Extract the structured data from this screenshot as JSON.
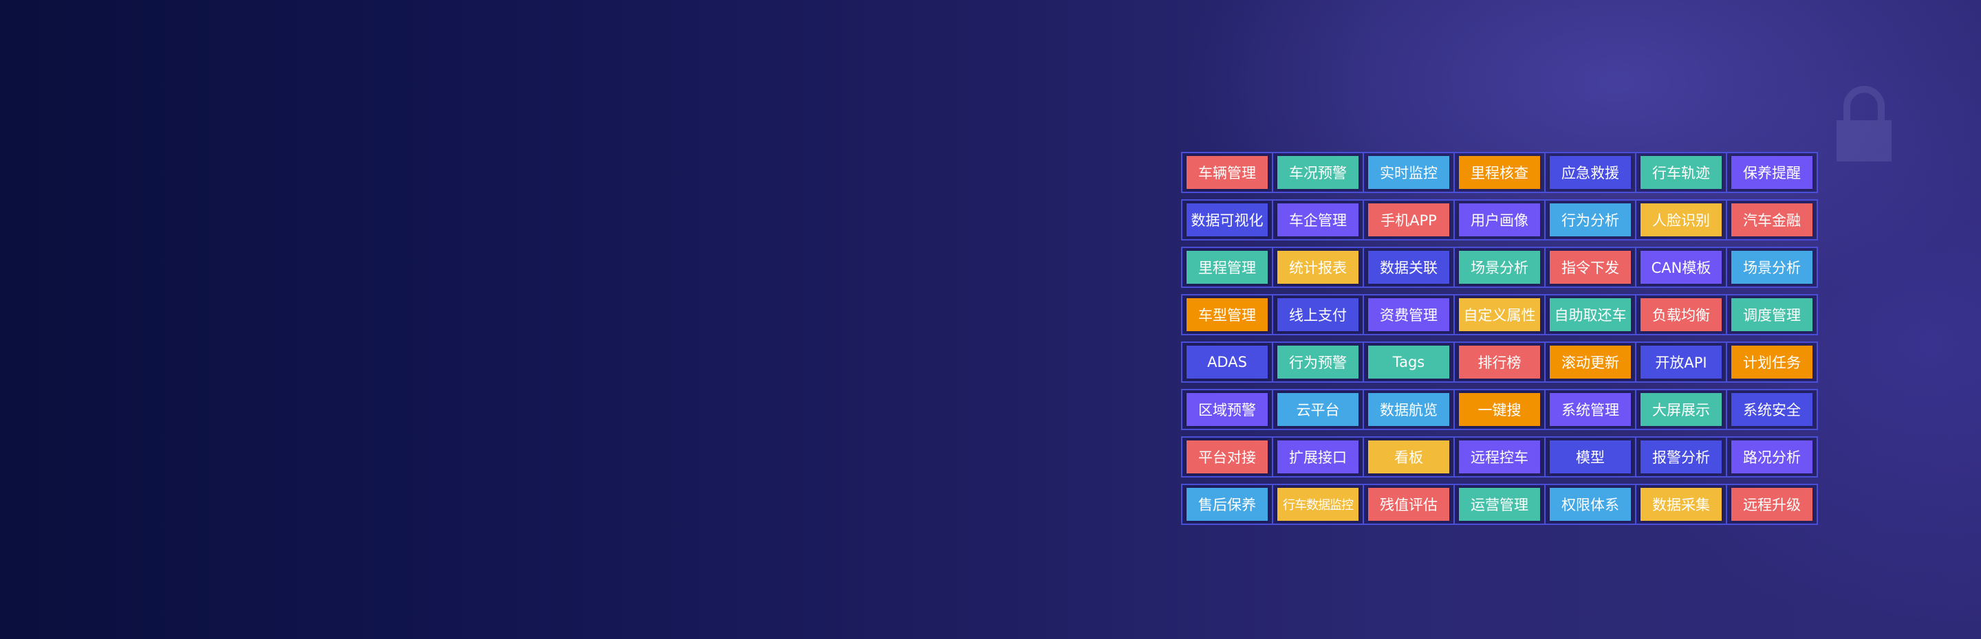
{
  "colors": {
    "red": "#ec6464",
    "teal": "#45c1a9",
    "blue": "#45a8e6",
    "orange": "#f39200",
    "indigo": "#494ee3",
    "purple": "#6f55f6",
    "yellow": "#f3bb3a"
  },
  "features": [
    [
      {
        "label": "车辆管理",
        "color": "red"
      },
      {
        "label": "车况预警",
        "color": "teal"
      },
      {
        "label": "实时监控",
        "color": "blue"
      },
      {
        "label": "里程核查",
        "color": "orange"
      },
      {
        "label": "应急救援",
        "color": "indigo"
      },
      {
        "label": "行车轨迹",
        "color": "teal"
      },
      {
        "label": "保养提醒",
        "color": "purple"
      }
    ],
    [
      {
        "label": "数据可视化",
        "color": "indigo"
      },
      {
        "label": "车企管理",
        "color": "purple"
      },
      {
        "label": "手机APP",
        "color": "red"
      },
      {
        "label": "用户画像",
        "color": "purple"
      },
      {
        "label": "行为分析",
        "color": "blue"
      },
      {
        "label": "人脸识别",
        "color": "yellow"
      },
      {
        "label": "汽车金融",
        "color": "red"
      }
    ],
    [
      {
        "label": "里程管理",
        "color": "teal"
      },
      {
        "label": "统计报表",
        "color": "yellow"
      },
      {
        "label": "数据关联",
        "color": "indigo"
      },
      {
        "label": "场景分析",
        "color": "teal"
      },
      {
        "label": "指令下发",
        "color": "red"
      },
      {
        "label": "CAN模板",
        "color": "purple"
      },
      {
        "label": "场景分析",
        "color": "blue"
      }
    ],
    [
      {
        "label": "车型管理",
        "color": "orange"
      },
      {
        "label": "线上支付",
        "color": "indigo"
      },
      {
        "label": "资费管理",
        "color": "purple"
      },
      {
        "label": "自定义属性",
        "color": "yellow"
      },
      {
        "label": "自助取还车",
        "color": "teal"
      },
      {
        "label": "负载均衡",
        "color": "red"
      },
      {
        "label": "调度管理",
        "color": "teal"
      }
    ],
    [
      {
        "label": "ADAS",
        "color": "indigo"
      },
      {
        "label": "行为预警",
        "color": "teal"
      },
      {
        "label": "Tags",
        "color": "teal"
      },
      {
        "label": "排行榜",
        "color": "red"
      },
      {
        "label": "滚动更新",
        "color": "orange"
      },
      {
        "label": "开放API",
        "color": "indigo"
      },
      {
        "label": "计划任务",
        "color": "orange"
      }
    ],
    [
      {
        "label": "区域预警",
        "color": "purple"
      },
      {
        "label": "云平台",
        "color": "blue"
      },
      {
        "label": "数据航览",
        "color": "blue"
      },
      {
        "label": "一键搜",
        "color": "orange"
      },
      {
        "label": "系统管理",
        "color": "purple"
      },
      {
        "label": "大屏展示",
        "color": "teal"
      },
      {
        "label": "系统安全",
        "color": "indigo"
      }
    ],
    [
      {
        "label": "平台对接",
        "color": "red"
      },
      {
        "label": "扩展接口",
        "color": "purple"
      },
      {
        "label": "看板",
        "color": "yellow"
      },
      {
        "label": "远程控车",
        "color": "purple"
      },
      {
        "label": "模型",
        "color": "indigo"
      },
      {
        "label": "报警分析",
        "color": "indigo"
      },
      {
        "label": "路况分析",
        "color": "purple"
      }
    ],
    [
      {
        "label": "售后保养",
        "color": "blue"
      },
      {
        "label": "行车数据监控",
        "color": "yellow"
      },
      {
        "label": "残值评估",
        "color": "red"
      },
      {
        "label": "运营管理",
        "color": "teal"
      },
      {
        "label": "权限体系",
        "color": "blue"
      },
      {
        "label": "数据采集",
        "color": "yellow"
      },
      {
        "label": "远程升级",
        "color": "red"
      }
    ]
  ]
}
